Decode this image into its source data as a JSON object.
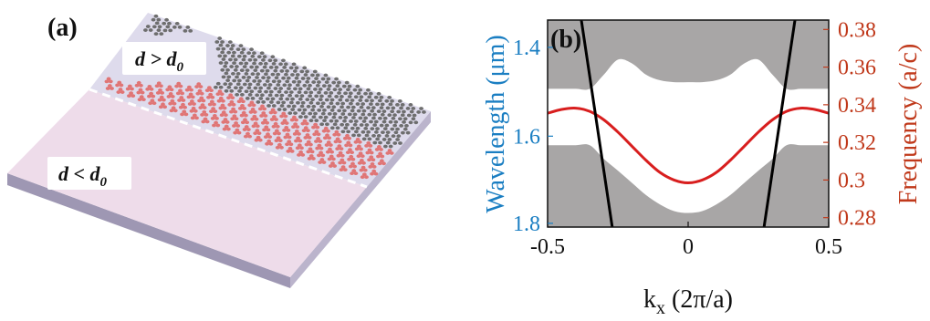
{
  "panel_a": {
    "label": "(a)",
    "upper_region_label": "d > d",
    "upper_region_sub": "0",
    "lower_region_label": "d < d",
    "lower_region_sub": "0",
    "colors": {
      "slab": "#dcd7ea",
      "slab_edge": "#a9a3bd",
      "upper_holes": "#6e6e6e",
      "lower_holes": "#e07575",
      "lower_tint": "#f2d2d8"
    }
  },
  "chart_data": {
    "type": "line",
    "panel_label": "(b)",
    "xlabel": "k",
    "xlabel_sub": "x",
    "xlabel_unit": " (2π/a)",
    "ylabel_left": "Wavelength (μm)",
    "ylabel_right": "Frequency (a/c)",
    "xlim": [
      -0.5,
      0.5
    ],
    "ylim_right": [
      0.275,
      0.385
    ],
    "x_ticks": [
      "-0.5",
      "0",
      "0.5"
    ],
    "x_tick_values": [
      -0.5,
      0,
      0.5
    ],
    "left_ticks": [
      "1.4",
      "1.6",
      "1.8"
    ],
    "left_tick_wavelengths": [
      1.4,
      1.6,
      1.8
    ],
    "right_ticks": [
      "0.28",
      "0.3",
      "0.32",
      "0.34",
      "0.36",
      "0.38"
    ],
    "right_tick_values": [
      0.28,
      0.3,
      0.32,
      0.34,
      0.36,
      0.38
    ],
    "left_axis_freq_for_wavelength": [
      0.3705,
      0.3233,
      0.277
    ],
    "colors": {
      "bulk": "#a8a6a6",
      "gap": "#ffffff",
      "edge_state": "#d81e1e",
      "light_line": "#000000",
      "left_axis": "#1a7ec2",
      "right_axis": "#c0391b"
    },
    "upper_bulk_band_edge": {
      "x": [
        -0.5,
        -0.45,
        -0.4,
        -0.35,
        -0.3,
        -0.25,
        -0.2,
        -0.15,
        -0.1,
        -0.05,
        0,
        0.05,
        0.1,
        0.15,
        0.2,
        0.25,
        0.3,
        0.35,
        0.4,
        0.45,
        0.5
      ],
      "y": [
        0.3485,
        0.3485,
        0.3485,
        0.3485,
        0.356,
        0.364,
        0.362,
        0.356,
        0.353,
        0.352,
        0.352,
        0.352,
        0.353,
        0.356,
        0.362,
        0.364,
        0.356,
        0.3485,
        0.3485,
        0.3485,
        0.3485
      ]
    },
    "lower_bulk_band_edge": {
      "x": [
        -0.5,
        -0.45,
        -0.4,
        -0.35,
        -0.3,
        -0.25,
        -0.2,
        -0.15,
        -0.1,
        -0.05,
        0,
        0.05,
        0.1,
        0.15,
        0.2,
        0.25,
        0.3,
        0.35,
        0.4,
        0.45,
        0.5
      ],
      "y": [
        0.3185,
        0.3185,
        0.3185,
        0.3185,
        0.3112,
        0.305,
        0.2985,
        0.292,
        0.287,
        0.2835,
        0.2825,
        0.2835,
        0.287,
        0.292,
        0.2985,
        0.305,
        0.3112,
        0.3185,
        0.3185,
        0.3185,
        0.3185
      ]
    },
    "edge_state": {
      "name": "",
      "x": [
        -0.5,
        -0.45,
        -0.4,
        -0.35,
        -0.3,
        -0.25,
        -0.2,
        -0.15,
        -0.1,
        -0.05,
        0,
        0.05,
        0.1,
        0.15,
        0.2,
        0.25,
        0.3,
        0.35,
        0.4,
        0.45,
        0.5
      ],
      "y": [
        0.3355,
        0.3375,
        0.3382,
        0.3365,
        0.332,
        0.3255,
        0.318,
        0.3105,
        0.304,
        0.3,
        0.2985,
        0.3,
        0.304,
        0.3105,
        0.318,
        0.3255,
        0.332,
        0.3365,
        0.3382,
        0.3375,
        0.3355
      ]
    },
    "light_lines": [
      {
        "x": [
          -0.38,
          -0.27
        ],
        "y": [
          0.385,
          0.275
        ]
      },
      {
        "x": [
          0.27,
          0.38
        ],
        "y": [
          0.275,
          0.385
        ]
      }
    ]
  }
}
